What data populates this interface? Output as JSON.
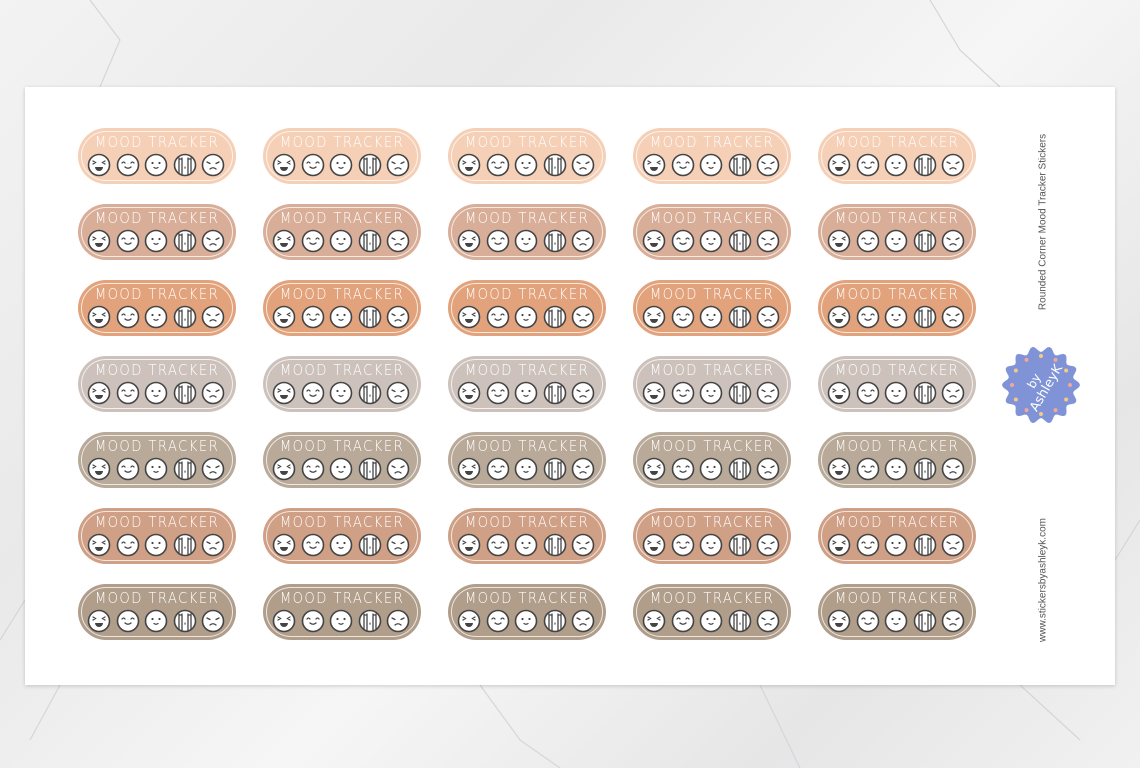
{
  "sticker_label": "MOOD TRACKER",
  "product_title": "Rounded Corner Mood Tracker  Stickers",
  "website": "www.stickersbyashleyk.com",
  "logo": {
    "text_line1": "by",
    "text_line2": "AshleyK",
    "color": "#7f93d6"
  },
  "faces": [
    "laughing-face-icon",
    "happy-face-icon",
    "smiling-face-icon",
    "crying-face-icon",
    "angry-face-icon"
  ],
  "rows": [
    {
      "color": "#f5cfb6"
    },
    {
      "color": "#d9ae98"
    },
    {
      "color": "#e2a27c"
    },
    {
      "color": "#cdc2bb"
    },
    {
      "color": "#b8a999"
    },
    {
      "color": "#cf9f86"
    },
    {
      "color": "#b09d8a"
    }
  ],
  "columns": 5
}
